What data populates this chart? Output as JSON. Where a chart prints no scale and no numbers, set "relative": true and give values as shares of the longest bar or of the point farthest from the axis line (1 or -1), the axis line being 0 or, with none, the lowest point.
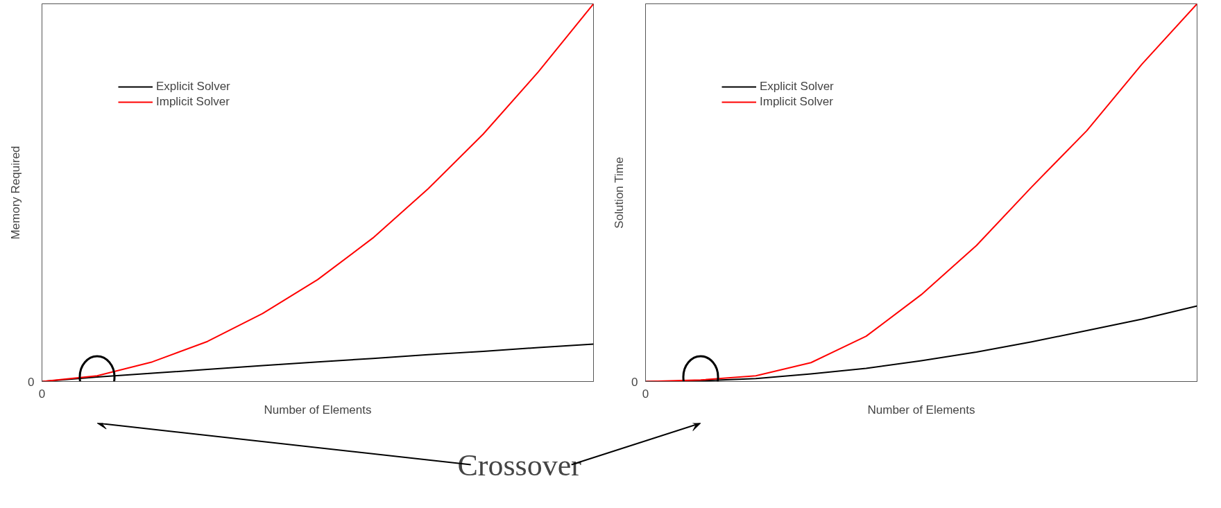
{
  "chart_data": [
    {
      "type": "line",
      "relative": true,
      "xlabel": "Number of Elements",
      "ylabel": "Memory Required",
      "categories": [
        null,
        null,
        null,
        null,
        null,
        null,
        null,
        null,
        null,
        null,
        null
      ],
      "legend": "top left",
      "annotations": [
        "0",
        "0",
        "Crossover"
      ],
      "series": [
        {
          "name": "Explicit Solver",
          "color": "#000000",
          "values": [
            0,
            0.012,
            0.022,
            0.032,
            0.042,
            0.052,
            0.061,
            0.071,
            0.08,
            0.09,
            0.099
          ]
        },
        {
          "name": "Implicit Solver",
          "color": "#ff0000",
          "values": [
            0,
            0.015,
            0.052,
            0.106,
            0.18,
            0.27,
            0.38,
            0.51,
            0.655,
            0.82,
            1
          ]
        }
      ]
    },
    {
      "type": "line",
      "relative": true,
      "xlabel": "Number of Elements",
      "ylabel": "Solution Time",
      "categories": [
        null,
        null,
        null,
        null,
        null,
        null,
        null,
        null,
        null,
        null,
        null
      ],
      "legend": "top left",
      "annotations": [
        "0",
        "0"
      ],
      "series": [
        {
          "name": "Explicit Solver",
          "color": "#000000",
          "values": [
            0,
            0.002,
            0.008,
            0.02,
            0.035,
            0.055,
            0.078,
            0.105,
            0.135,
            0.165,
            0.2
          ]
        },
        {
          "name": "Implicit Solver",
          "color": "#ff0000",
          "values": [
            0,
            0.004,
            0.015,
            0.05,
            0.12,
            0.23,
            0.36,
            0.515,
            0.664,
            0.84,
            1
          ]
        }
      ]
    }
  ]
}
